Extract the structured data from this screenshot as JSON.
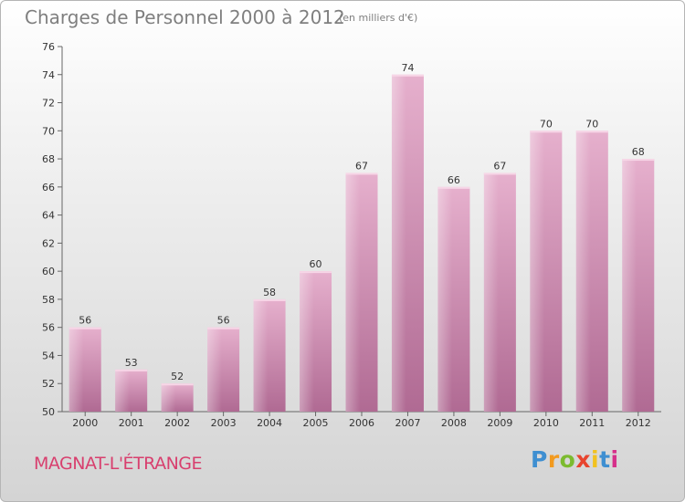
{
  "header": {
    "title": "Charges de Personnel 2000 à 2012",
    "subtitle": "(en milliers d'€)"
  },
  "footer": {
    "commune": "MAGNAT-L'ÉTRANGE",
    "logo_letters": [
      "P",
      "r",
      "o",
      "x",
      "i",
      "t",
      "i"
    ]
  },
  "colors": {
    "bar": "#c97ba4",
    "bar_light": "#e2a8c8",
    "commune_text": "#d83f6e"
  },
  "chart_data": {
    "type": "bar",
    "title": "Charges de Personnel 2000 à 2012",
    "subtitle": "(en milliers d'€)",
    "categories": [
      "2000",
      "2001",
      "2002",
      "2003",
      "2004",
      "2005",
      "2006",
      "2007",
      "2008",
      "2009",
      "2010",
      "2011",
      "2012"
    ],
    "values": [
      56,
      53,
      52,
      56,
      58,
      60,
      67,
      74,
      66,
      67,
      70,
      70,
      68
    ],
    "ylim": [
      50,
      76
    ],
    "yticks": [
      50,
      52,
      54,
      56,
      58,
      60,
      62,
      64,
      66,
      68,
      70,
      72,
      74,
      76
    ],
    "grid": false,
    "xlabel": "",
    "ylabel": ""
  }
}
